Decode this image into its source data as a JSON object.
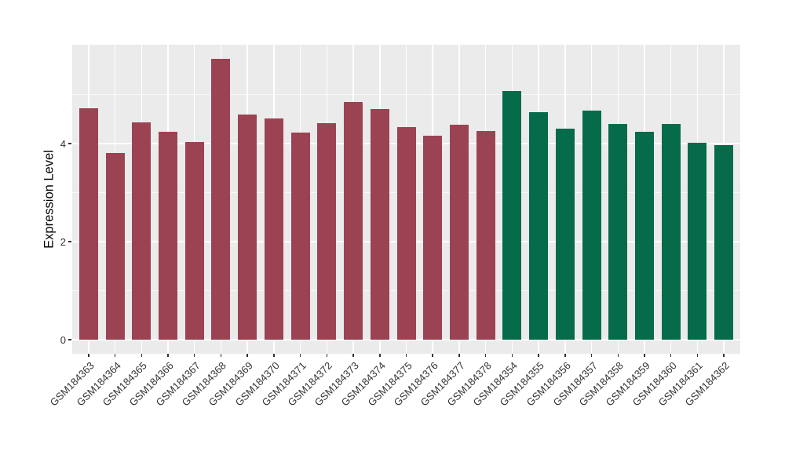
{
  "figure": {
    "background_color": "#FFFFFF",
    "panel_background_color": "#EBEBEB",
    "gridline_color": "#FFFFFF",
    "tick_text_color": "#333333",
    "group_colors": {
      "maroon": "#9C4353",
      "green": "#066B4B"
    }
  },
  "chart_data": {
    "type": "bar",
    "title": "",
    "xlabel": "",
    "ylabel": "Expression Level",
    "ylim": [
      0,
      6.02
    ],
    "yticks": [
      0,
      2,
      4
    ],
    "y_minor_gridlines": [
      1,
      3,
      5
    ],
    "grid": "on",
    "legend_position": "none",
    "categories": [
      "GSM184363",
      "GSM184364",
      "GSM184365",
      "GSM184366",
      "GSM184367",
      "GSM184368",
      "GSM184369",
      "GSM184370",
      "GSM184371",
      "GSM184372",
      "GSM184373",
      "GSM184374",
      "GSM184375",
      "GSM184376",
      "GSM184377",
      "GSM184378",
      "GSM184354",
      "GSM184355",
      "GSM184356",
      "GSM184357",
      "GSM184358",
      "GSM184359",
      "GSM184360",
      "GSM184361",
      "GSM184362"
    ],
    "bars": [
      {
        "label": "GSM184363",
        "value": 4.72,
        "color": "#9C4353"
      },
      {
        "label": "GSM184364",
        "value": 3.81,
        "color": "#9C4353"
      },
      {
        "label": "GSM184365",
        "value": 4.43,
        "color": "#9C4353"
      },
      {
        "label": "GSM184366",
        "value": 4.24,
        "color": "#9C4353"
      },
      {
        "label": "GSM184367",
        "value": 4.03,
        "color": "#9C4353"
      },
      {
        "label": "GSM184368",
        "value": 5.73,
        "color": "#9C4353"
      },
      {
        "label": "GSM184369",
        "value": 4.59,
        "color": "#9C4353"
      },
      {
        "label": "GSM184370",
        "value": 4.51,
        "color": "#9C4353"
      },
      {
        "label": "GSM184371",
        "value": 4.22,
        "color": "#9C4353"
      },
      {
        "label": "GSM184372",
        "value": 4.42,
        "color": "#9C4353"
      },
      {
        "label": "GSM184373",
        "value": 4.85,
        "color": "#9C4353"
      },
      {
        "label": "GSM184374",
        "value": 4.7,
        "color": "#9C4353"
      },
      {
        "label": "GSM184375",
        "value": 4.34,
        "color": "#9C4353"
      },
      {
        "label": "GSM184376",
        "value": 4.16,
        "color": "#9C4353"
      },
      {
        "label": "GSM184377",
        "value": 4.38,
        "color": "#9C4353"
      },
      {
        "label": "GSM184378",
        "value": 4.26,
        "color": "#9C4353"
      },
      {
        "label": "GSM184354",
        "value": 5.07,
        "color": "#066B4B"
      },
      {
        "label": "GSM184355",
        "value": 4.64,
        "color": "#066B4B"
      },
      {
        "label": "GSM184356",
        "value": 4.3,
        "color": "#066B4B"
      },
      {
        "label": "GSM184357",
        "value": 4.67,
        "color": "#066B4B"
      },
      {
        "label": "GSM184358",
        "value": 4.4,
        "color": "#066B4B"
      },
      {
        "label": "GSM184359",
        "value": 4.24,
        "color": "#066B4B"
      },
      {
        "label": "GSM184360",
        "value": 4.4,
        "color": "#066B4B"
      },
      {
        "label": "GSM184361",
        "value": 4.02,
        "color": "#066B4B"
      },
      {
        "label": "GSM184362",
        "value": 3.97,
        "color": "#066B4B"
      }
    ]
  }
}
